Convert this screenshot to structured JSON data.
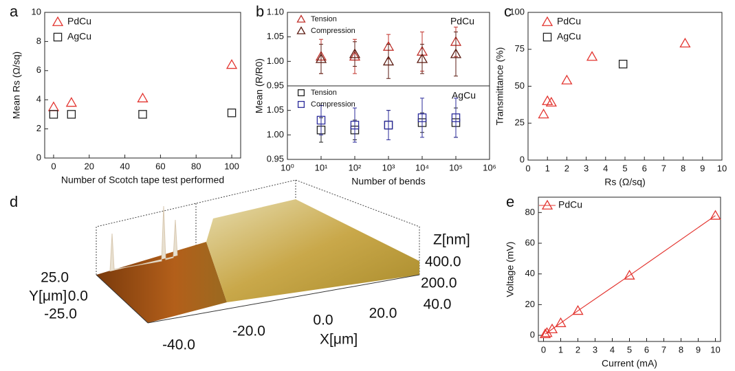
{
  "chart_data": [
    {
      "type": "scatter",
      "panel_label": "a",
      "xlabel": "Number of Scotch tape test performed",
      "ylabel": "Mean Rs (Ω/sq)",
      "xlim": [
        -5,
        105
      ],
      "xticks": [
        0,
        20,
        40,
        60,
        80,
        100
      ],
      "ylim": [
        0,
        10
      ],
      "yticks": [
        0,
        2,
        4,
        6,
        8,
        10
      ],
      "series": [
        {
          "name": "PdCu",
          "color": "#e3342f",
          "marker": "triangle",
          "x": [
            0,
            10,
            50,
            100
          ],
          "values": [
            3.5,
            3.8,
            4.1,
            6.4
          ]
        },
        {
          "name": "AgCu",
          "color": "#222222",
          "marker": "square",
          "x": [
            0,
            10,
            50,
            100
          ],
          "values": [
            3.0,
            3.0,
            3.0,
            3.1
          ]
        }
      ]
    },
    {
      "type": "scatter",
      "panel_label": "b",
      "ylabel": "Mean (R/R0)",
      "annotation": "PdCu",
      "xlog": true,
      "xlim": [
        1,
        1000000
      ],
      "ylim": [
        0.95,
        1.1
      ],
      "yticks": [
        {
          "value": 0.95,
          "label": "0.95"
        },
        {
          "value": 1,
          "label": "1.00"
        },
        {
          "value": 1.05,
          "label": "1.05"
        },
        {
          "value": 1.1,
          "label": "1.10"
        }
      ],
      "series": [
        {
          "name": "Tension",
          "color": "#c0302a",
          "marker": "triangle",
          "x": [
            10,
            100,
            1000,
            10000,
            100000
          ],
          "values": [
            1.01,
            1.01,
            1.03,
            1.02,
            1.04
          ],
          "errors": [
            0.035,
            0.035,
            0.025,
            0.04,
            0.03
          ]
        },
        {
          "name": "Compression",
          "color": "#5a1a10",
          "marker": "triangle",
          "x": [
            10,
            100,
            1000,
            10000,
            100000
          ],
          "values": [
            1.005,
            1.015,
            1.0,
            1.005,
            1.015
          ],
          "errors": [
            0.03,
            0.025,
            0.035,
            0.03,
            0.045
          ]
        }
      ]
    },
    {
      "type": "scatter",
      "xlabel": "Number of bends",
      "annotation": "AgCu",
      "xlog": true,
      "xlim": [
        1,
        1000000
      ],
      "xticks": [
        {
          "value": 1,
          "label": "10⁰"
        },
        {
          "value": 10,
          "label": "10¹"
        },
        {
          "value": 100,
          "label": "10²"
        },
        {
          "value": 1000,
          "label": "10³"
        },
        {
          "value": 10000,
          "label": "10⁴"
        },
        {
          "value": 100000,
          "label": "10⁵"
        },
        {
          "value": 1000000,
          "label": "10⁶"
        }
      ],
      "ylim": [
        0.95,
        1.1
      ],
      "yticks": [
        {
          "value": 0.95,
          "label": "0.95"
        },
        {
          "value": 1,
          "label": "1.00"
        },
        {
          "value": 1.05,
          "label": "1.05"
        }
      ],
      "series": [
        {
          "name": "Tension",
          "color": "#222222",
          "marker": "square",
          "x": [
            10,
            100,
            1000,
            10000,
            100000
          ],
          "values": [
            1.01,
            1.01,
            1.02,
            1.025,
            1.025
          ],
          "errors": [
            0.025,
            0.02,
            0.03,
            0.02,
            0.03
          ]
        },
        {
          "name": "Compression",
          "color": "#2a2a9a",
          "marker": "square",
          "x": [
            10,
            100,
            1000,
            10000,
            100000
          ],
          "values": [
            1.03,
            1.02,
            1.02,
            1.035,
            1.035
          ],
          "errors": [
            0.03,
            0.035,
            0.03,
            0.04,
            0.04
          ]
        }
      ]
    },
    {
      "type": "scatter",
      "panel_label": "c",
      "xlabel": "Rs (Ω/sq)",
      "ylabel": "Transmittance (%)",
      "xlim": [
        0,
        10
      ],
      "xticks": [
        0,
        1,
        2,
        3,
        4,
        5,
        6,
        7,
        8,
        9,
        10
      ],
      "ylim": [
        0,
        100
      ],
      "yticks": [
        0,
        25,
        50,
        75,
        100
      ],
      "series": [
        {
          "name": "PdCu",
          "color": "#e3342f",
          "marker": "triangle",
          "x": [
            0.8,
            1.0,
            1.2,
            2.0,
            3.3,
            8.1
          ],
          "values": [
            31,
            40,
            39,
            54,
            70,
            79
          ]
        },
        {
          "name": "AgCu",
          "color": "#222222",
          "marker": "square",
          "x": [
            4.9
          ],
          "values": [
            65
          ]
        }
      ]
    },
    {
      "type": "surface",
      "panel_label": "d",
      "z_label": "Z[nm]",
      "z_ticks": [
        "400.0",
        "200.0"
      ],
      "y_label": "Y[μm]",
      "y_ticks": [
        "25.0",
        "0.0",
        "-25.0"
      ],
      "x_label": "X[μm]",
      "x_ticks": [
        "-40.0",
        "-20.0",
        "0.0",
        "20.0",
        "40.0"
      ]
    },
    {
      "type": "line",
      "panel_label": "e",
      "xlabel": "Current (mA)",
      "ylabel": "Voltage (mV)",
      "xlim": [
        -0.3,
        10.3
      ],
      "xticks": [
        0,
        1,
        2,
        3,
        4,
        5,
        6,
        7,
        8,
        9,
        10
      ],
      "ylim": [
        -4,
        90
      ],
      "yticks": [
        0,
        20,
        40,
        60,
        80
      ],
      "series": [
        {
          "name": "PdCu",
          "color": "#e3342f",
          "marker": "triangle",
          "x": [
            0.1,
            0.2,
            0.5,
            1,
            2,
            5,
            10
          ],
          "values": [
            0.8,
            1.6,
            4,
            8,
            16,
            39,
            78
          ]
        }
      ]
    }
  ]
}
